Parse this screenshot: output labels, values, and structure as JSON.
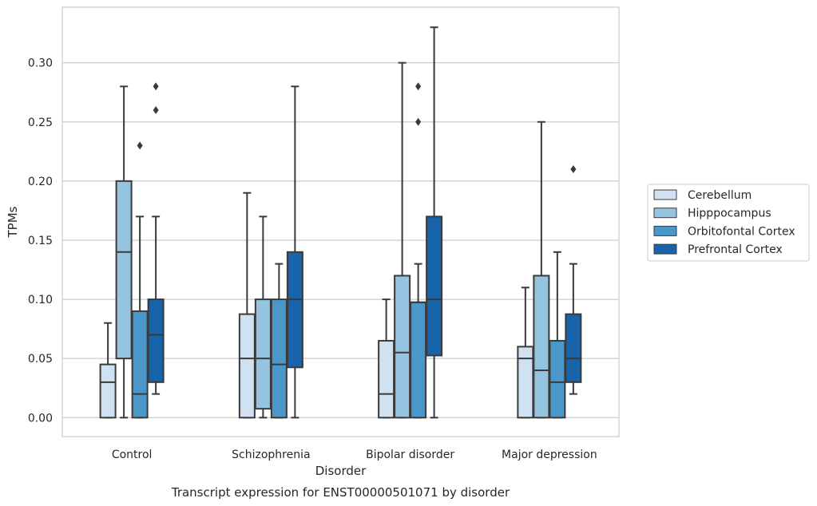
{
  "chart_data": {
    "type": "box",
    "caption": "Transcript expression for ENST00000501071 by disorder",
    "xlabel": "Disorder",
    "ylabel": "TPMs",
    "ylim": [
      -0.016,
      0.347
    ],
    "yticks": [
      "0.00",
      "0.05",
      "0.10",
      "0.15",
      "0.20",
      "0.25",
      "0.30"
    ],
    "grid": true,
    "legend_position": "right",
    "categories": [
      "Control",
      "Schizophrenia",
      "Bipolar disorder",
      "Major depression"
    ],
    "series": [
      {
        "name": "Cerebellum",
        "color": "#d0e1f2",
        "boxes": [
          {
            "whislo": 0.0,
            "q1": 0.0,
            "med": 0.03,
            "q3": 0.045,
            "whishi": 0.08,
            "fliers": []
          },
          {
            "whislo": 0.0,
            "q1": 0.0,
            "med": 0.05,
            "q3": 0.0875,
            "whishi": 0.19,
            "fliers": []
          },
          {
            "whislo": 0.0,
            "q1": 0.0,
            "med": 0.02,
            "q3": 0.065,
            "whishi": 0.1,
            "fliers": []
          },
          {
            "whislo": 0.0,
            "q1": 0.0,
            "med": 0.05,
            "q3": 0.06,
            "whishi": 0.11,
            "fliers": []
          }
        ]
      },
      {
        "name": "Hipppocampus",
        "color": "#94c4df",
        "boxes": [
          {
            "whislo": 0.0,
            "q1": 0.05,
            "med": 0.14,
            "q3": 0.2,
            "whishi": 0.28,
            "fliers": []
          },
          {
            "whislo": 0.0,
            "q1": 0.0075,
            "med": 0.05,
            "q3": 0.1,
            "whishi": 0.17,
            "fliers": []
          },
          {
            "whislo": 0.0,
            "q1": 0.0,
            "med": 0.055,
            "q3": 0.12,
            "whishi": 0.3,
            "fliers": []
          },
          {
            "whislo": 0.0,
            "q1": 0.0,
            "med": 0.04,
            "q3": 0.12,
            "whishi": 0.25,
            "fliers": []
          }
        ]
      },
      {
        "name": "Orbitofontal Cortex",
        "color": "#4a98c9",
        "boxes": [
          {
            "whislo": 0.0,
            "q1": 0.0,
            "med": 0.02,
            "q3": 0.09,
            "whishi": 0.17,
            "fliers": [
              0.23
            ]
          },
          {
            "whislo": 0.0,
            "q1": 0.0,
            "med": 0.045,
            "q3": 0.1,
            "whishi": 0.13,
            "fliers": []
          },
          {
            "whislo": 0.0,
            "q1": 0.0,
            "med": 0.0975,
            "q3": 0.0975,
            "whishi": 0.13,
            "fliers": [
              0.25,
              0.28
            ]
          },
          {
            "whislo": 0.0,
            "q1": 0.0,
            "med": 0.03,
            "q3": 0.065,
            "whishi": 0.14,
            "fliers": []
          }
        ]
      },
      {
        "name": "Prefrontal Cortex",
        "color": "#1764ab",
        "boxes": [
          {
            "whislo": 0.02,
            "q1": 0.03,
            "med": 0.07,
            "q3": 0.1,
            "whishi": 0.17,
            "fliers": [
              0.26,
              0.28
            ]
          },
          {
            "whislo": 0.0,
            "q1": 0.0425,
            "med": 0.1,
            "q3": 0.14,
            "whishi": 0.28,
            "fliers": []
          },
          {
            "whislo": 0.0,
            "q1": 0.0525,
            "med": 0.1,
            "q3": 0.17,
            "whishi": 0.33,
            "fliers": []
          },
          {
            "whislo": 0.02,
            "q1": 0.03,
            "med": 0.05,
            "q3": 0.0875,
            "whishi": 0.13,
            "fliers": [
              0.21
            ]
          }
        ]
      }
    ]
  }
}
